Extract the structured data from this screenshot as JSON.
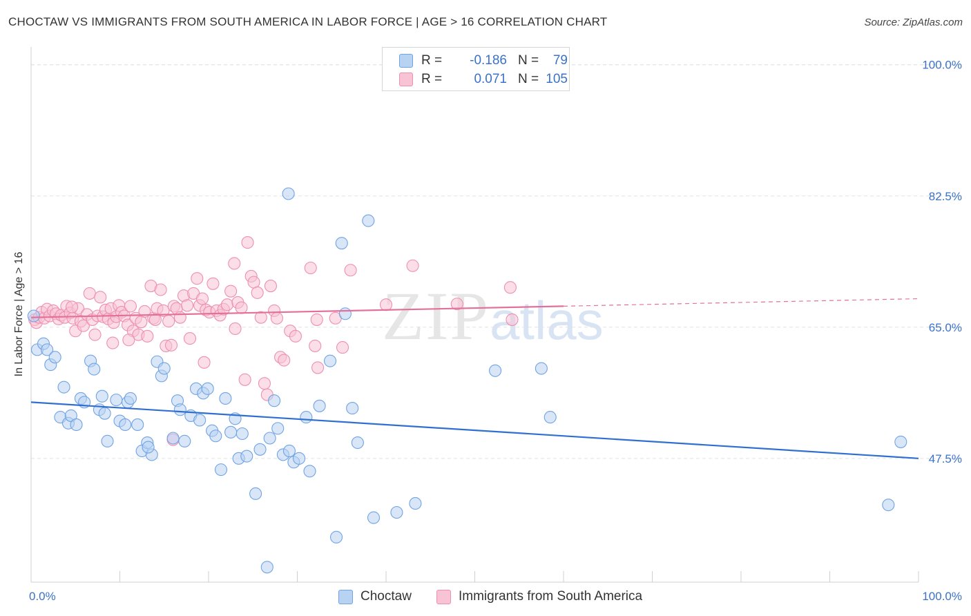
{
  "title": "CHOCTAW VS IMMIGRANTS FROM SOUTH AMERICA IN LABOR FORCE | AGE > 16 CORRELATION CHART",
  "source": "Source: ZipAtlas.com",
  "watermark": {
    "zip": "ZIP",
    "atlas": "atlas"
  },
  "colors": {
    "choctaw": "#6fa3e4",
    "choctaw_fill": "#b8d2f2",
    "south_america": "#ee8fae",
    "south_america_fill": "#f7c3d5",
    "blue_line": "#2f6fd0",
    "pink_line": "#e3709a",
    "tick": "#3a72c8"
  },
  "legend": {
    "rows": [
      {
        "r_label": "R =",
        "r_value": "-0.186",
        "n_label": "N =",
        "n_value": "79"
      },
      {
        "r_label": "R =",
        "r_value": "0.071",
        "n_label": "N =",
        "n_value": "105"
      }
    ]
  },
  "bottom_legend": {
    "choctaw": "Choctaw",
    "south_america": "Immigrants from South America"
  },
  "chart_data": {
    "type": "scatter",
    "title": "CHOCTAW VS IMMIGRANTS FROM SOUTH AMERICA IN LABOR FORCE | AGE > 16 CORRELATION CHART",
    "xlabel": "",
    "ylabel": "In Labor Force | Age > 16",
    "xlim": [
      0,
      100
    ],
    "ylim": [
      31,
      102
    ],
    "x_tick_labels": [
      "0.0%",
      "100.0%"
    ],
    "y_ticks": [
      47.5,
      65.0,
      82.5,
      100.0
    ],
    "y_tick_labels": [
      "47.5%",
      "65.0%",
      "82.5%",
      "100.0%"
    ],
    "grid": true,
    "legend_position": "top-center",
    "series": [
      {
        "name": "Choctaw",
        "color": "#6fa3e4",
        "trend": {
          "x": [
            0,
            100
          ],
          "y": [
            55.0,
            47.5
          ]
        },
        "points": [
          [
            0.3,
            66.5
          ],
          [
            0.7,
            62.0
          ],
          [
            1.4,
            62.8
          ],
          [
            1.8,
            62.0
          ],
          [
            2.2,
            60.0
          ],
          [
            2.7,
            61.0
          ],
          [
            3.3,
            53.0
          ],
          [
            3.7,
            57.0
          ],
          [
            4.2,
            52.2
          ],
          [
            4.5,
            53.2
          ],
          [
            5.1,
            52.0
          ],
          [
            5.6,
            55.5
          ],
          [
            6.0,
            55.0
          ],
          [
            6.7,
            60.5
          ],
          [
            7.1,
            59.4
          ],
          [
            7.7,
            54.0
          ],
          [
            8.0,
            55.8
          ],
          [
            8.3,
            53.5
          ],
          [
            8.6,
            49.8
          ],
          [
            9.6,
            55.3
          ],
          [
            10.0,
            52.5
          ],
          [
            10.6,
            52.0
          ],
          [
            10.9,
            55.0
          ],
          [
            11.2,
            55.5
          ],
          [
            12.0,
            52.0
          ],
          [
            12.5,
            48.5
          ],
          [
            13.1,
            49.6
          ],
          [
            13.6,
            48.0
          ],
          [
            14.2,
            60.4
          ],
          [
            14.7,
            58.5
          ],
          [
            15.0,
            59.5
          ],
          [
            16.0,
            50.2
          ],
          [
            16.5,
            55.2
          ],
          [
            16.8,
            54.0
          ],
          [
            17.3,
            49.8
          ],
          [
            18.0,
            53.2
          ],
          [
            18.6,
            56.8
          ],
          [
            19.0,
            52.6
          ],
          [
            19.4,
            56.2
          ],
          [
            19.9,
            56.8
          ],
          [
            20.4,
            51.2
          ],
          [
            20.8,
            50.5
          ],
          [
            21.4,
            46.0
          ],
          [
            21.9,
            55.5
          ],
          [
            22.5,
            51.0
          ],
          [
            23.0,
            52.8
          ],
          [
            23.4,
            47.5
          ],
          [
            23.8,
            50.8
          ],
          [
            24.3,
            47.8
          ],
          [
            25.3,
            42.8
          ],
          [
            25.8,
            48.7
          ],
          [
            26.6,
            33.0
          ],
          [
            26.9,
            50.2
          ],
          [
            27.4,
            55.2
          ],
          [
            27.8,
            51.5
          ],
          [
            28.4,
            48.0
          ],
          [
            29.1,
            48.5
          ],
          [
            29.6,
            47.0
          ],
          [
            30.2,
            47.5
          ],
          [
            31.0,
            53.0
          ],
          [
            31.4,
            45.8
          ],
          [
            32.5,
            54.5
          ],
          [
            33.7,
            60.5
          ],
          [
            34.4,
            37.0
          ],
          [
            35.0,
            76.2
          ],
          [
            35.4,
            66.8
          ],
          [
            36.2,
            54.2
          ],
          [
            36.8,
            49.6
          ],
          [
            38.0,
            79.2
          ],
          [
            38.6,
            39.6
          ],
          [
            41.2,
            40.3
          ],
          [
            43.3,
            41.5
          ],
          [
            52.3,
            59.2
          ],
          [
            57.5,
            59.5
          ],
          [
            58.5,
            53.0
          ],
          [
            96.6,
            41.3
          ],
          [
            98.0,
            49.7
          ],
          [
            29.0,
            82.8
          ],
          [
            13.2,
            49.0
          ]
        ]
      },
      {
        "name": "Immigrants from South America",
        "color": "#ee8fae",
        "trend": {
          "x": [
            0,
            60
          ],
          "y": [
            66.3,
            67.8
          ],
          "dashed_to": {
            "x": 100,
            "y": 68.8
          }
        },
        "points": [
          [
            0.4,
            66.0
          ],
          [
            0.6,
            65.6
          ],
          [
            0.9,
            66.3
          ],
          [
            1.2,
            67.0
          ],
          [
            1.5,
            66.2
          ],
          [
            1.8,
            67.4
          ],
          [
            2.1,
            66.5
          ],
          [
            2.5,
            67.2
          ],
          [
            2.8,
            66.8
          ],
          [
            3.1,
            66.1
          ],
          [
            3.4,
            66.6
          ],
          [
            3.8,
            66.3
          ],
          [
            4.0,
            67.8
          ],
          [
            4.4,
            66.9
          ],
          [
            4.7,
            66.2
          ],
          [
            5.0,
            64.5
          ],
          [
            5.3,
            67.5
          ],
          [
            5.6,
            65.8
          ],
          [
            5.9,
            65.2
          ],
          [
            6.3,
            66.7
          ],
          [
            6.6,
            69.5
          ],
          [
            6.9,
            66.0
          ],
          [
            7.2,
            64.0
          ],
          [
            7.5,
            66.5
          ],
          [
            7.8,
            69.0
          ],
          [
            8.1,
            66.4
          ],
          [
            8.4,
            67.3
          ],
          [
            8.7,
            66.1
          ],
          [
            9.0,
            67.5
          ],
          [
            9.3,
            65.6
          ],
          [
            9.6,
            66.4
          ],
          [
            9.9,
            67.9
          ],
          [
            10.2,
            67.0
          ],
          [
            10.5,
            66.5
          ],
          [
            10.9,
            65.3
          ],
          [
            11.2,
            67.8
          ],
          [
            11.5,
            64.5
          ],
          [
            11.8,
            66.2
          ],
          [
            12.1,
            64.0
          ],
          [
            12.4,
            65.7
          ],
          [
            12.8,
            67.1
          ],
          [
            13.1,
            63.8
          ],
          [
            13.5,
            70.5
          ],
          [
            13.8,
            66.2
          ],
          [
            14.2,
            67.5
          ],
          [
            14.6,
            70.0
          ],
          [
            14.9,
            67.2
          ],
          [
            15.2,
            62.5
          ],
          [
            15.5,
            65.8
          ],
          [
            15.8,
            62.6
          ],
          [
            16.1,
            67.8
          ],
          [
            16.4,
            67.5
          ],
          [
            16.8,
            66.3
          ],
          [
            17.2,
            69.2
          ],
          [
            17.6,
            67.9
          ],
          [
            17.9,
            63.5
          ],
          [
            18.3,
            69.5
          ],
          [
            18.7,
            71.5
          ],
          [
            19.0,
            67.9
          ],
          [
            19.3,
            68.8
          ],
          [
            19.7,
            67.3
          ],
          [
            20.1,
            67.0
          ],
          [
            20.5,
            70.8
          ],
          [
            20.9,
            67.2
          ],
          [
            21.3,
            66.6
          ],
          [
            21.7,
            67.4
          ],
          [
            22.1,
            68.0
          ],
          [
            22.5,
            69.8
          ],
          [
            22.9,
            73.5
          ],
          [
            23.3,
            68.3
          ],
          [
            23.7,
            67.6
          ],
          [
            24.1,
            58.0
          ],
          [
            24.4,
            76.3
          ],
          [
            24.8,
            71.8
          ],
          [
            25.1,
            71.0
          ],
          [
            25.5,
            69.6
          ],
          [
            25.9,
            66.3
          ],
          [
            26.3,
            57.5
          ],
          [
            26.6,
            56.0
          ],
          [
            27.0,
            70.5
          ],
          [
            27.4,
            67.2
          ],
          [
            27.7,
            66.2
          ],
          [
            28.1,
            61.0
          ],
          [
            28.5,
            60.6
          ],
          [
            29.2,
            64.5
          ],
          [
            29.8,
            63.8
          ],
          [
            31.5,
            72.9
          ],
          [
            32.0,
            62.5
          ],
          [
            32.3,
            59.6
          ],
          [
            34.3,
            66.2
          ],
          [
            35.1,
            62.3
          ],
          [
            36.0,
            72.6
          ],
          [
            40.0,
            68.0
          ],
          [
            43.0,
            73.2
          ],
          [
            48.0,
            68.1
          ],
          [
            54.0,
            70.3
          ],
          [
            54.2,
            66.0
          ],
          [
            23.0,
            64.8
          ],
          [
            32.2,
            66.0
          ],
          [
            19.5,
            60.3
          ],
          [
            16.0,
            50.0
          ],
          [
            4.6,
            67.7
          ],
          [
            9.2,
            62.9
          ],
          [
            11.0,
            63.3
          ],
          [
            14.0,
            66.0
          ]
        ]
      }
    ]
  }
}
